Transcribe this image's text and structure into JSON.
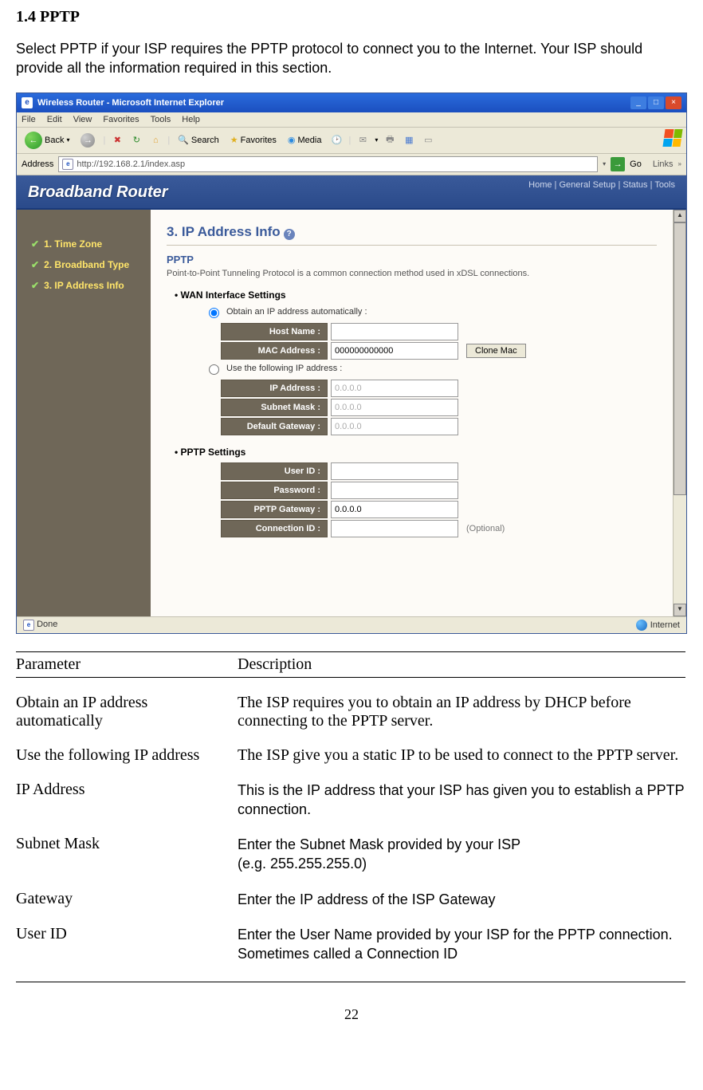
{
  "heading": "1.4 PPTP",
  "intro": "Select PPTP if your ISP requires the PPTP protocol to connect you to the Internet. Your ISP should provide all the information required in this section.",
  "ie": {
    "title": "Wireless Router - Microsoft Internet Explorer",
    "menus": [
      "File",
      "Edit",
      "View",
      "Favorites",
      "Tools",
      "Help"
    ],
    "back": "Back",
    "search": "Search",
    "favorites": "Favorites",
    "media": "Media",
    "addr_label": "Address",
    "url": "http://192.168.2.1/index.asp",
    "go": "Go",
    "links": "Links",
    "status_done": "Done",
    "status_zone": "Internet"
  },
  "router": {
    "banner": "Broadband Router",
    "crumbs": "Home | General Setup | Status | Tools",
    "steps": [
      "1. Time Zone",
      "2. Broadband Type",
      "3. IP Address Info"
    ],
    "sec_title": "3. IP Address Info",
    "subhead": "PPTP",
    "subdesc": "Point-to-Point Tunneling Protocol is a common connection method used in xDSL connections.",
    "wan_title": "WAN Interface Settings",
    "obtain": "Obtain an IP address automatically :",
    "use_static": "Use the following IP address :",
    "pptp_title": "PPTP Settings",
    "fields": {
      "host_name": {
        "label": "Host Name :",
        "val": ""
      },
      "mac": {
        "label": "MAC Address :",
        "val": "000000000000"
      },
      "clone": "Clone Mac",
      "ip": {
        "label": "IP Address :",
        "val": "0.0.0.0"
      },
      "mask": {
        "label": "Subnet Mask :",
        "val": "0.0.0.0"
      },
      "gw": {
        "label": "Default Gateway :",
        "val": "0.0.0.0"
      },
      "user": {
        "label": "User ID :",
        "val": ""
      },
      "pass": {
        "label": "Password :",
        "val": ""
      },
      "pptp_gw": {
        "label": "PPTP Gateway :",
        "val": "0.0.0.0"
      },
      "conn_id": {
        "label": "Connection ID :",
        "val": "",
        "note": "(Optional)"
      }
    }
  },
  "table": {
    "h1": "Parameter",
    "h2": "Description",
    "rows": [
      {
        "p": "Obtain an IP address automatically",
        "d": "The ISP requires you to obtain an IP address by DHCP before connecting to the PPTP server.",
        "font": "serif"
      },
      {
        "p": "Use the following IP address",
        "d": "The ISP give you a static IP to be used to connect to the PPTP server.",
        "font": "serif"
      },
      {
        "p": "IP Address",
        "d": "This is the IP address that your ISP has given you to establish a PPTP connection.",
        "font": "sans-mix"
      },
      {
        "p": "Subnet Mask",
        "d": "Enter the Subnet Mask provided by your ISP\n(e.g. 255.255.255.0)",
        "font": "sans-mix"
      },
      {
        "p": "Gateway",
        "d": "Enter the IP address of the ISP Gateway",
        "font": "sans-mix"
      },
      {
        "p": "User ID",
        "d": "Enter the User Name provided by your ISP for the PPTP connection. Sometimes called a Connection ID",
        "font": "sans-mix"
      }
    ]
  },
  "page_num": "22"
}
